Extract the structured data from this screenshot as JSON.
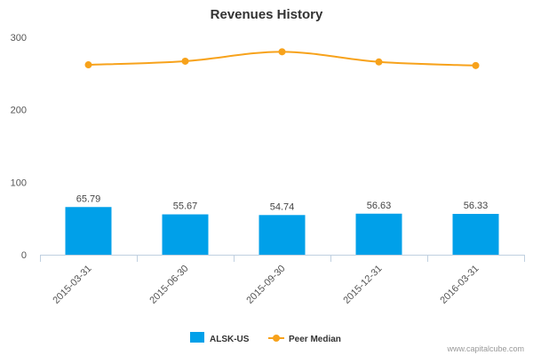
{
  "chart_data": {
    "type": "bar",
    "title": "Revenues History",
    "categories": [
      "2015-03-31",
      "2015-06-30",
      "2015-09-30",
      "2015-12-31",
      "2016-03-31"
    ],
    "series": [
      {
        "name": "ALSK-US",
        "type": "bar",
        "color": "#00a0e9",
        "values": [
          65.79,
          55.67,
          54.74,
          56.63,
          56.33
        ],
        "labels": [
          "65.79",
          "55.67",
          "54.74",
          "56.63",
          "56.33"
        ]
      },
      {
        "name": "Peer Median",
        "type": "line",
        "color": "#f7a21b",
        "values": [
          262,
          267,
          280,
          266,
          261
        ]
      }
    ],
    "ylim": [
      0,
      300
    ],
    "yticks": [
      0,
      100,
      200,
      300
    ],
    "grid": false,
    "legend_position": "bottom"
  },
  "credit": "www.capitalcube.com"
}
